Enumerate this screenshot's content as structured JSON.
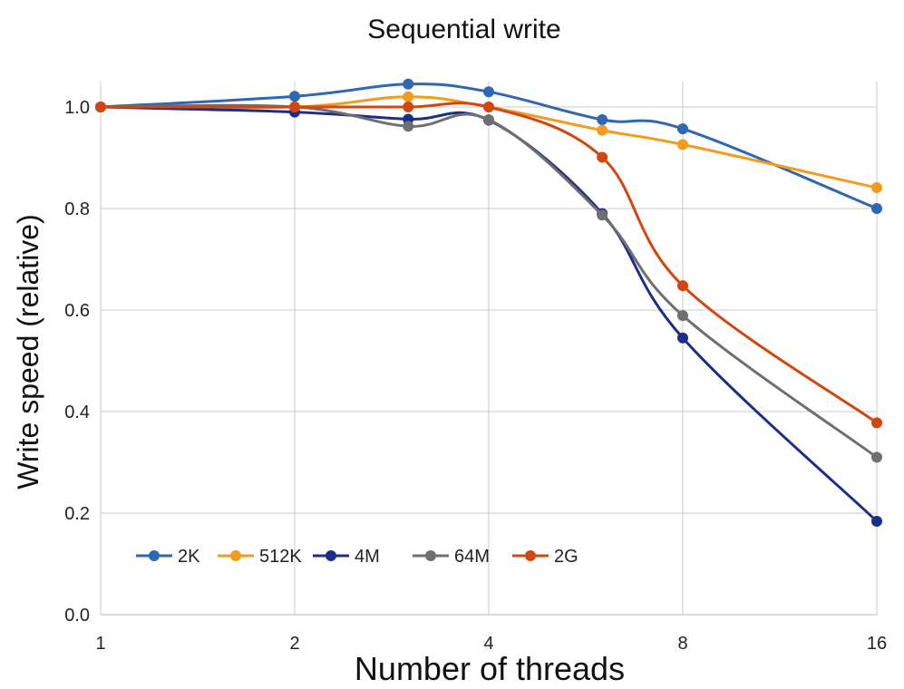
{
  "chart_data": {
    "type": "line",
    "title": "Sequential write",
    "xlabel": "Number of threads",
    "ylabel": "Write speed (relative)",
    "x_scale": "log2",
    "x_ticks": [
      1,
      2,
      4,
      8,
      16
    ],
    "x_tick_labels": [
      "1",
      "2",
      "4",
      "8",
      "16"
    ],
    "ylim": [
      0,
      1.0
    ],
    "y_ticks": [
      0.0,
      0.2,
      0.4,
      0.6,
      0.8,
      1.0
    ],
    "y_tick_labels": [
      "0.0",
      "0.2",
      "0.4",
      "0.6",
      "0.8",
      "1.0"
    ],
    "grid": true,
    "legend_position": "bottom-left",
    "x": [
      1,
      2,
      3,
      4,
      6,
      8,
      16
    ],
    "series": [
      {
        "name": "2K",
        "color": "#2f67b3",
        "values": [
          1.0,
          1.021,
          1.045,
          1.03,
          0.975,
          0.957,
          0.8
        ]
      },
      {
        "name": "512K",
        "color": "#f39a1f",
        "values": [
          1.0,
          1.0,
          1.02,
          1.0,
          0.954,
          0.926,
          0.841
        ]
      },
      {
        "name": "4M",
        "color": "#1b2f8a",
        "values": [
          1.0,
          0.99,
          0.976,
          0.974,
          0.79,
          0.545,
          0.184
        ]
      },
      {
        "name": "64M",
        "color": "#6f6f6f",
        "values": [
          1.0,
          1.0,
          0.962,
          0.975,
          0.787,
          0.589,
          0.31
        ]
      },
      {
        "name": "2G",
        "color": "#d2470f",
        "values": [
          1.0,
          1.0,
          1.0,
          1.0,
          0.901,
          0.648,
          0.378
        ]
      }
    ]
  }
}
